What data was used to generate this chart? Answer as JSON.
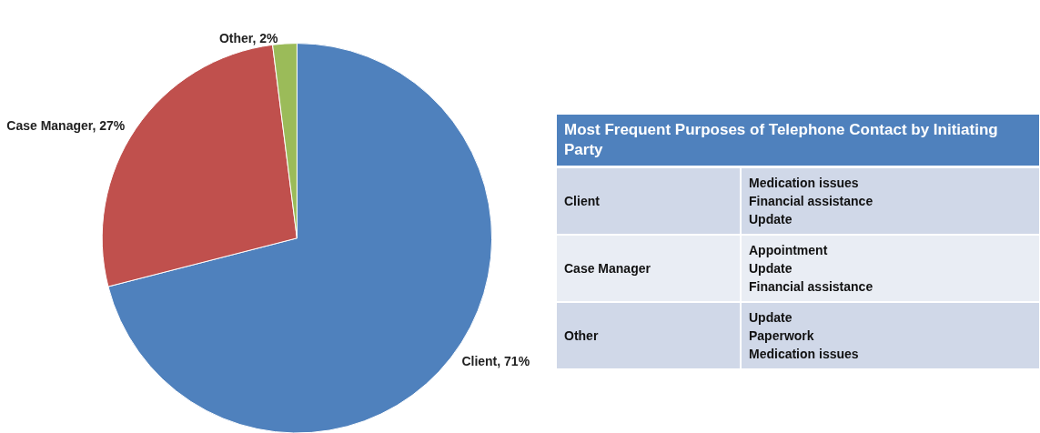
{
  "chart_data": [
    {
      "type": "pie",
      "categories": [
        "Client",
        "Case Manager",
        "Other"
      ],
      "values": [
        71,
        27,
        2
      ],
      "colors": [
        "#4f81bd",
        "#c0504d",
        "#9bbb59"
      ],
      "value_labels": [
        "71%",
        "27%",
        "2%"
      ]
    },
    {
      "type": "other",
      "title": "Most Frequent Purposes of Telephone Contact by Initiating Party",
      "categories": [
        "Client",
        "Case Manager",
        "Other"
      ],
      "annotations": [
        "Medication issues\nFinancial assistance\nUpdate",
        "Appointment\nUpdate\nFinancial assistance",
        "Update\nPaperwork\nMedication issues"
      ]
    }
  ]
}
